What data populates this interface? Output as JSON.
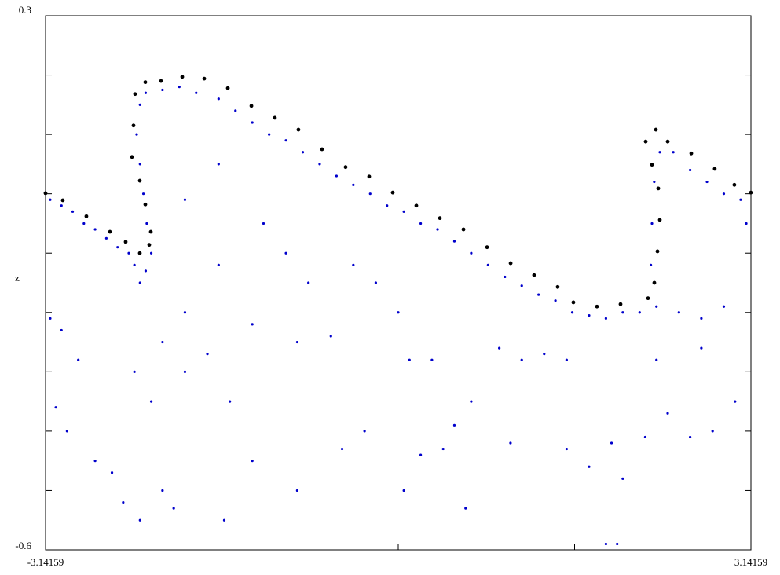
{
  "chart_data": {
    "type": "scatter",
    "ylabel": "z",
    "xlim": [
      -3.14159,
      3.14159
    ],
    "ylim": [
      -0.6,
      0.3
    ],
    "xticks": [
      -3.14159,
      3.14159
    ],
    "xminor": [
      -1.5708,
      0,
      1.5708
    ],
    "yticks": [
      0.3,
      -0.6
    ],
    "yminor": [
      0.2,
      0.1,
      0,
      -0.1,
      -0.2,
      -0.3,
      -0.4,
      -0.5
    ],
    "series": [
      {
        "color": "#000000",
        "x": [
          -3.142,
          -2.988,
          -2.778,
          -2.568,
          -2.428,
          -2.302,
          -2.218,
          -2.204,
          -2.253,
          -2.302,
          -2.372,
          -2.358,
          -2.344,
          -2.253,
          -2.113,
          -1.924,
          -1.728,
          -1.518,
          -1.308,
          -1.099,
          -0.889,
          -0.679,
          -0.469,
          -0.259,
          -0.049,
          0.161,
          0.371,
          0.581,
          0.791,
          1.001,
          1.21,
          1.42,
          1.56,
          1.77,
          1.98,
          2.225,
          2.281,
          2.309,
          2.33,
          2.316,
          2.26,
          2.204,
          2.295,
          2.4,
          2.61,
          2.819,
          2.994,
          3.141
        ],
        "y": [
          0.001,
          -0.011,
          -0.038,
          -0.064,
          -0.081,
          -0.1,
          -0.086,
          -0.064,
          -0.018,
          0.022,
          0.062,
          0.115,
          0.168,
          0.188,
          0.19,
          0.197,
          0.194,
          0.178,
          0.148,
          0.128,
          0.108,
          0.075,
          0.045,
          0.029,
          0.002,
          -0.02,
          -0.041,
          -0.06,
          -0.09,
          -0.117,
          -0.137,
          -0.157,
          -0.183,
          -0.19,
          -0.186,
          -0.176,
          -0.15,
          -0.097,
          -0.044,
          0.009,
          0.049,
          0.088,
          0.108,
          0.088,
          0.068,
          0.042,
          0.015,
          0.002
        ]
      },
      {
        "color": "#0000cc",
        "x": [
          -3.1,
          -3.0,
          -2.9,
          -2.8,
          -2.7,
          -2.6,
          -2.5,
          -2.4,
          -2.35,
          -2.3,
          -2.25,
          -2.2,
          -2.24,
          -2.27,
          -2.3,
          -2.33,
          -2.3,
          -2.25,
          -2.1,
          -1.95,
          -1.8,
          -1.6,
          -1.45,
          -1.3,
          -1.15,
          -1.0,
          -0.85,
          -0.7,
          -0.55,
          -0.4,
          -0.25,
          -0.1,
          0.05,
          0.2,
          0.35,
          0.5,
          0.65,
          0.8,
          0.95,
          1.1,
          1.25,
          1.4,
          1.55,
          1.7,
          1.85,
          2.0,
          2.15,
          2.3,
          2.25,
          2.26,
          2.28,
          2.33,
          2.45,
          2.6,
          2.75,
          2.9,
          3.05,
          2.5,
          2.7,
          2.9,
          3.1,
          -3.1,
          -3.0,
          -2.85,
          -2.95,
          -3.05,
          -2.7,
          -2.55,
          -2.45,
          -2.3,
          -2.1,
          -2.0,
          -1.9,
          -1.7,
          -1.5,
          -1.3,
          -1.9,
          -1.6,
          -1.2,
          -1.0,
          -0.8,
          -0.9,
          -0.6,
          -0.5,
          -0.3,
          -0.2,
          0.0,
          0.1,
          0.3,
          0.05,
          0.2,
          0.4,
          0.5,
          0.6,
          0.9,
          1.1,
          1.3,
          1.5,
          1.5,
          1.7,
          1.9,
          2.0,
          2.2,
          2.4,
          2.6,
          2.8,
          3.0,
          2.3,
          2.7,
          1.85,
          1.95,
          -1.55,
          -0.9,
          -1.3,
          -2.1,
          -2.35,
          -2.2,
          1.0,
          0.65,
          -0.4,
          -1.6,
          -1.9
        ],
        "y": [
          -0.01,
          -0.02,
          -0.03,
          -0.05,
          -0.06,
          -0.075,
          -0.09,
          -0.1,
          -0.12,
          -0.15,
          -0.13,
          -0.1,
          -0.05,
          0.0,
          0.05,
          0.1,
          0.15,
          0.17,
          0.175,
          0.18,
          0.17,
          0.16,
          0.14,
          0.12,
          0.1,
          0.09,
          0.07,
          0.05,
          0.03,
          0.015,
          0.0,
          -0.02,
          -0.03,
          -0.05,
          -0.06,
          -0.08,
          -0.1,
          -0.12,
          -0.14,
          -0.155,
          -0.17,
          -0.18,
          -0.2,
          -0.205,
          -0.21,
          -0.2,
          -0.2,
          -0.19,
          -0.12,
          -0.05,
          0.02,
          0.07,
          0.07,
          0.04,
          0.02,
          0.0,
          -0.01,
          -0.2,
          -0.21,
          -0.19,
          -0.05,
          -0.21,
          -0.23,
          -0.28,
          -0.4,
          -0.36,
          -0.45,
          -0.47,
          -0.52,
          -0.55,
          -0.5,
          -0.53,
          -0.3,
          -0.27,
          -0.35,
          -0.45,
          -0.01,
          0.05,
          -0.05,
          -0.1,
          -0.15,
          -0.25,
          -0.24,
          -0.43,
          -0.4,
          -0.15,
          -0.2,
          -0.28,
          -0.28,
          -0.5,
          -0.44,
          -0.43,
          -0.39,
          -0.53,
          -0.26,
          -0.28,
          -0.27,
          -0.43,
          -0.28,
          -0.46,
          -0.42,
          -0.48,
          -0.41,
          -0.37,
          -0.41,
          -0.4,
          -0.35,
          -0.28,
          -0.26,
          -0.59,
          -0.59,
          -0.55,
          -0.5,
          -0.22,
          -0.25,
          -0.3,
          -0.35,
          -0.42,
          -0.35,
          -0.12,
          -0.12,
          -0.2
        ]
      }
    ]
  }
}
